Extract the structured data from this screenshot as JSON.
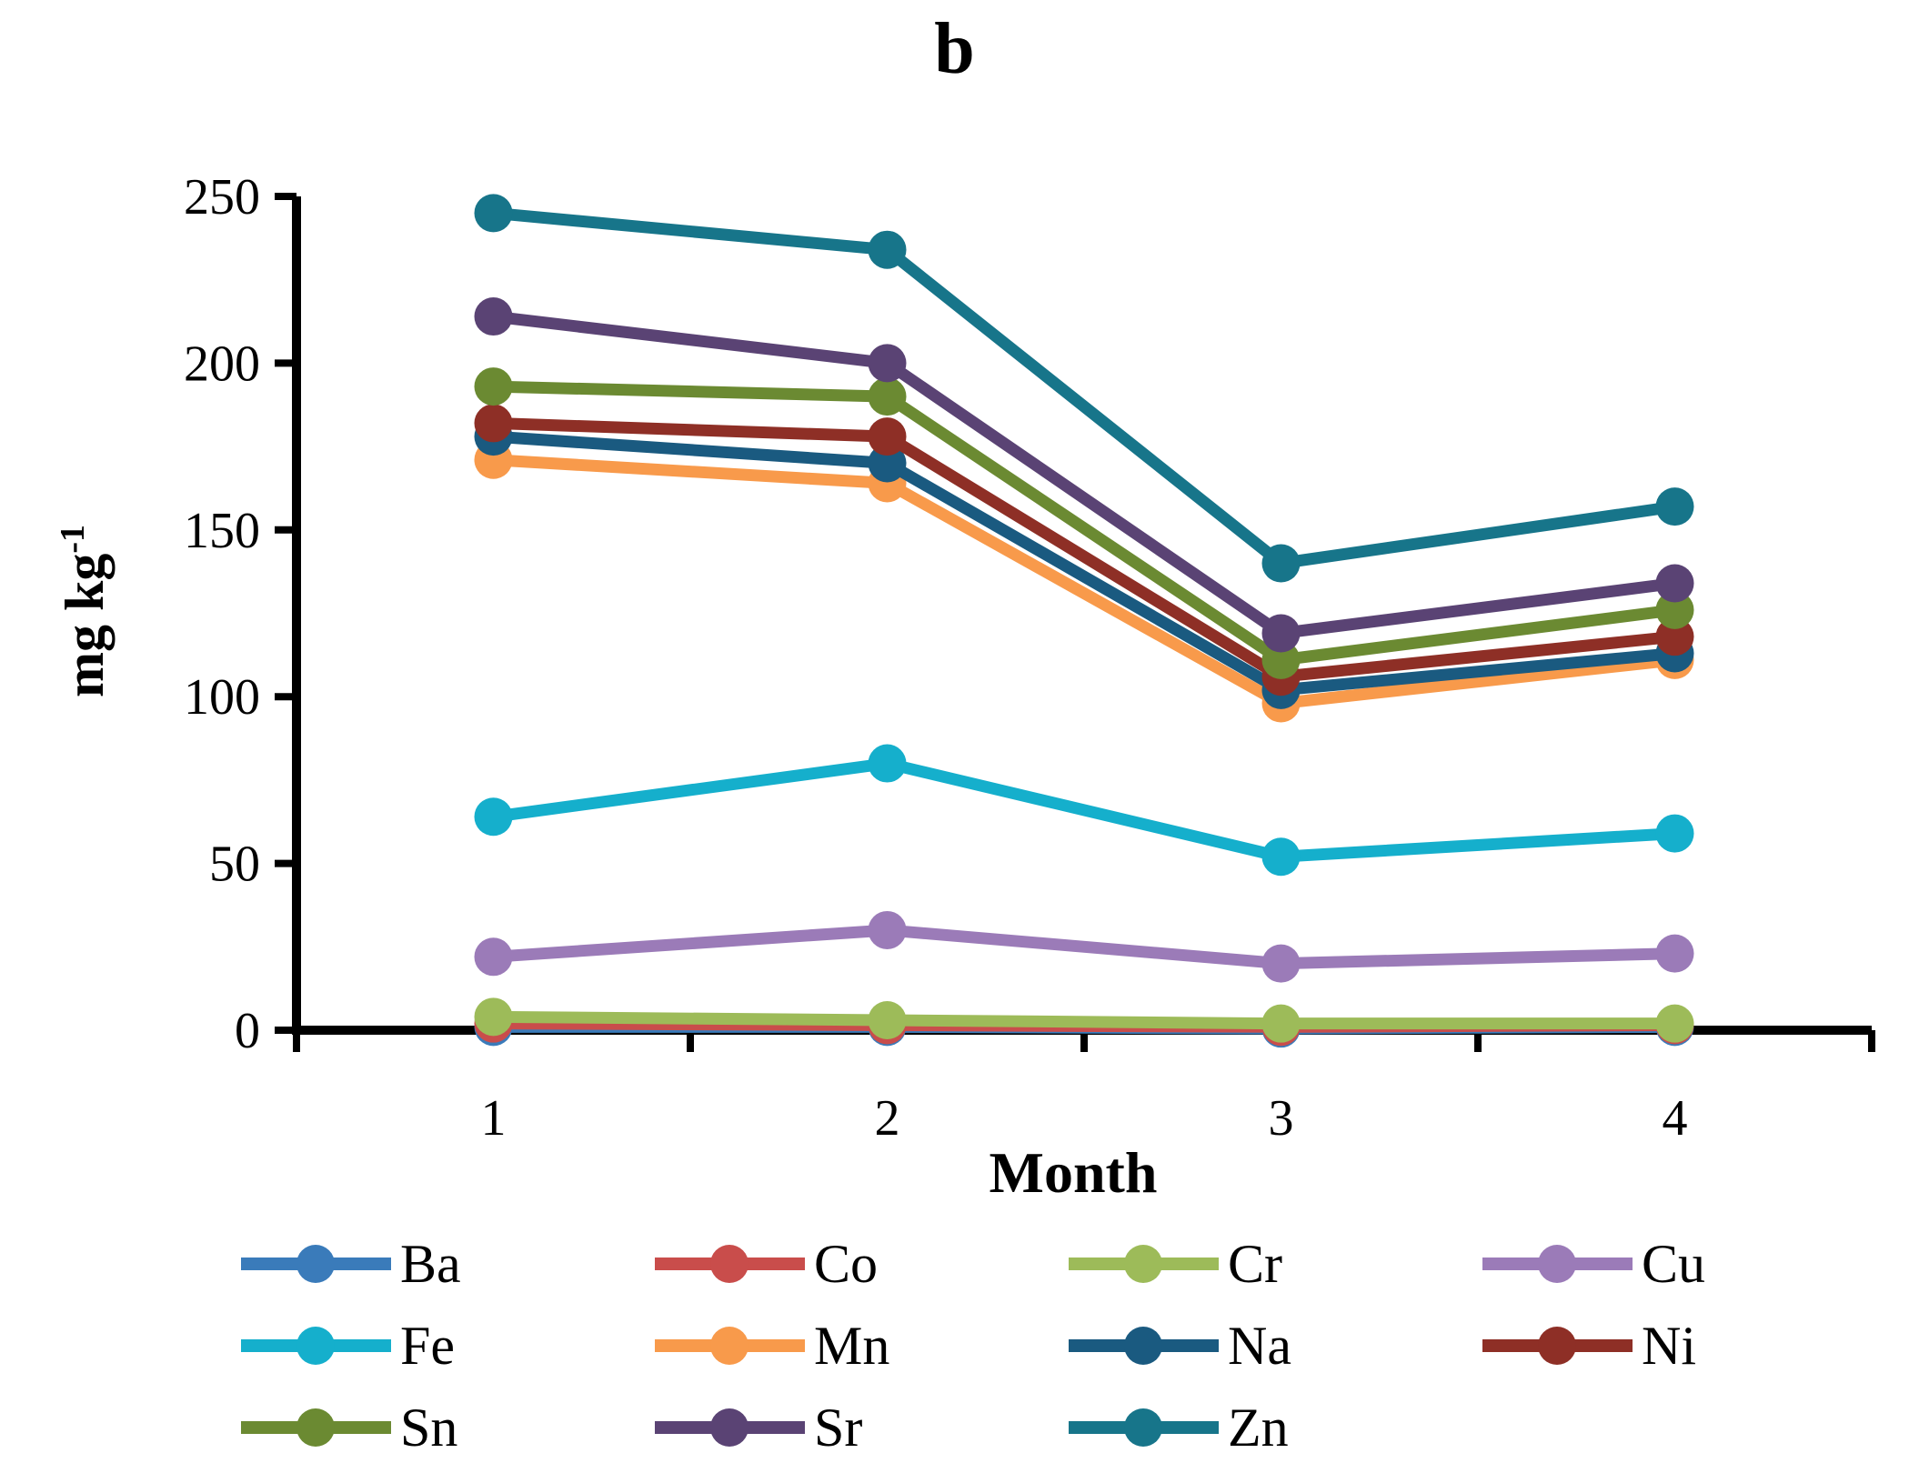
{
  "figure": {
    "panel_label": "b"
  },
  "chart_data": {
    "type": "line",
    "title": "b",
    "xlabel": "Month",
    "ylabel": "mg kg",
    "ylabel_superscript": "-1",
    "x_categories": [
      "1",
      "2",
      "3",
      "4"
    ],
    "ylim": [
      0,
      250
    ],
    "yticks": [
      0,
      50,
      100,
      150,
      200,
      250
    ],
    "grid": false,
    "legend_position": "bottom",
    "axis_color": "#000000",
    "background_color": "#ffffff",
    "series": [
      {
        "name": "Ba",
        "color": "#3A7BBA",
        "values": [
          1,
          1,
          0.5,
          1
        ]
      },
      {
        "name": "Co",
        "color": "#C94D4B",
        "values": [
          2,
          1.5,
          1,
          1.5
        ]
      },
      {
        "name": "Cr",
        "color": "#9DBB59",
        "values": [
          4,
          3,
          2,
          2
        ]
      },
      {
        "name": "Cu",
        "color": "#9B7BB8",
        "values": [
          22,
          30,
          20,
          23
        ]
      },
      {
        "name": "Fe",
        "color": "#15AFCC",
        "values": [
          64,
          80,
          52,
          59
        ]
      },
      {
        "name": "Mn",
        "color": "#F89A4B",
        "values": [
          171,
          164,
          98,
          111
        ]
      },
      {
        "name": "Na",
        "color": "#1A5A80",
        "values": [
          178,
          170,
          102,
          113
        ]
      },
      {
        "name": "Ni",
        "color": "#8E2F26",
        "values": [
          182,
          178,
          106,
          118
        ]
      },
      {
        "name": "Sn",
        "color": "#6B8A32",
        "values": [
          193,
          190,
          111,
          126
        ]
      },
      {
        "name": "Sr",
        "color": "#5A4374",
        "values": [
          214,
          200,
          119,
          134
        ]
      },
      {
        "name": "Zn",
        "color": "#17758A",
        "values": [
          245,
          234,
          140,
          157
        ]
      }
    ]
  }
}
